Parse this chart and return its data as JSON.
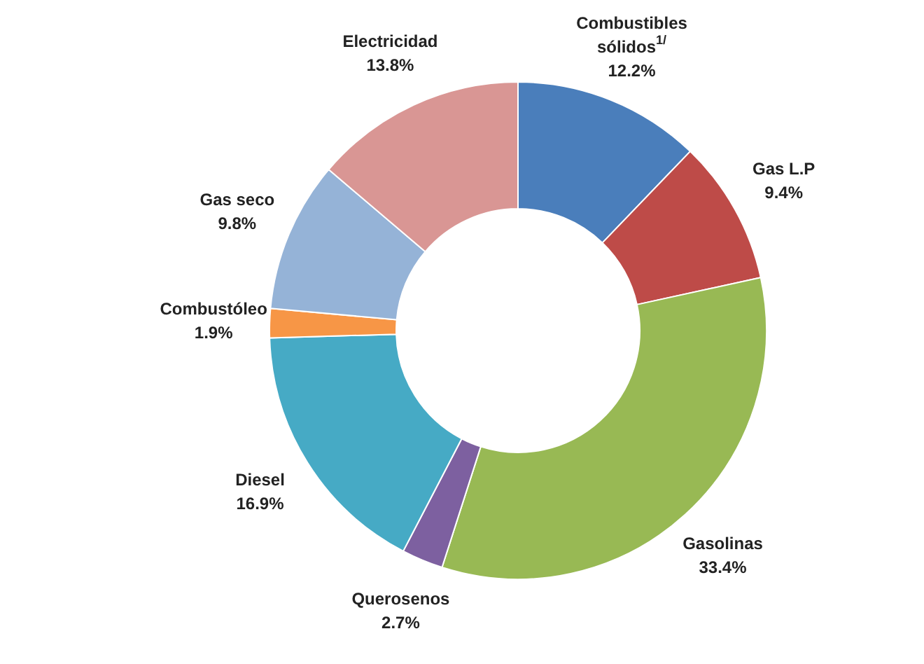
{
  "chart_data": {
    "type": "donut",
    "categories": [
      "Combustibles sólidos$^{1/}$",
      "Gas L.P",
      "Gasolinas",
      "Querosenos",
      "Diesel",
      "Combustóleo",
      "Gas seco",
      "Electricidad"
    ],
    "values": [
      12.2,
      9.4,
      33.4,
      2.7,
      16.9,
      1.9,
      9.8,
      13.8
    ],
    "colors": [
      "#4a7ebb",
      "#be4b48",
      "#98b954",
      "#7d60a0",
      "#46aac5",
      "#f79646",
      "#95b3d7",
      "#d99694"
    ],
    "value_labels": [
      "12.2%",
      "9.4%",
      "33.4%",
      "2.7%",
      "16.9%",
      "1.9%",
      "9.8%",
      "13.8%"
    ],
    "legend": false
  }
}
